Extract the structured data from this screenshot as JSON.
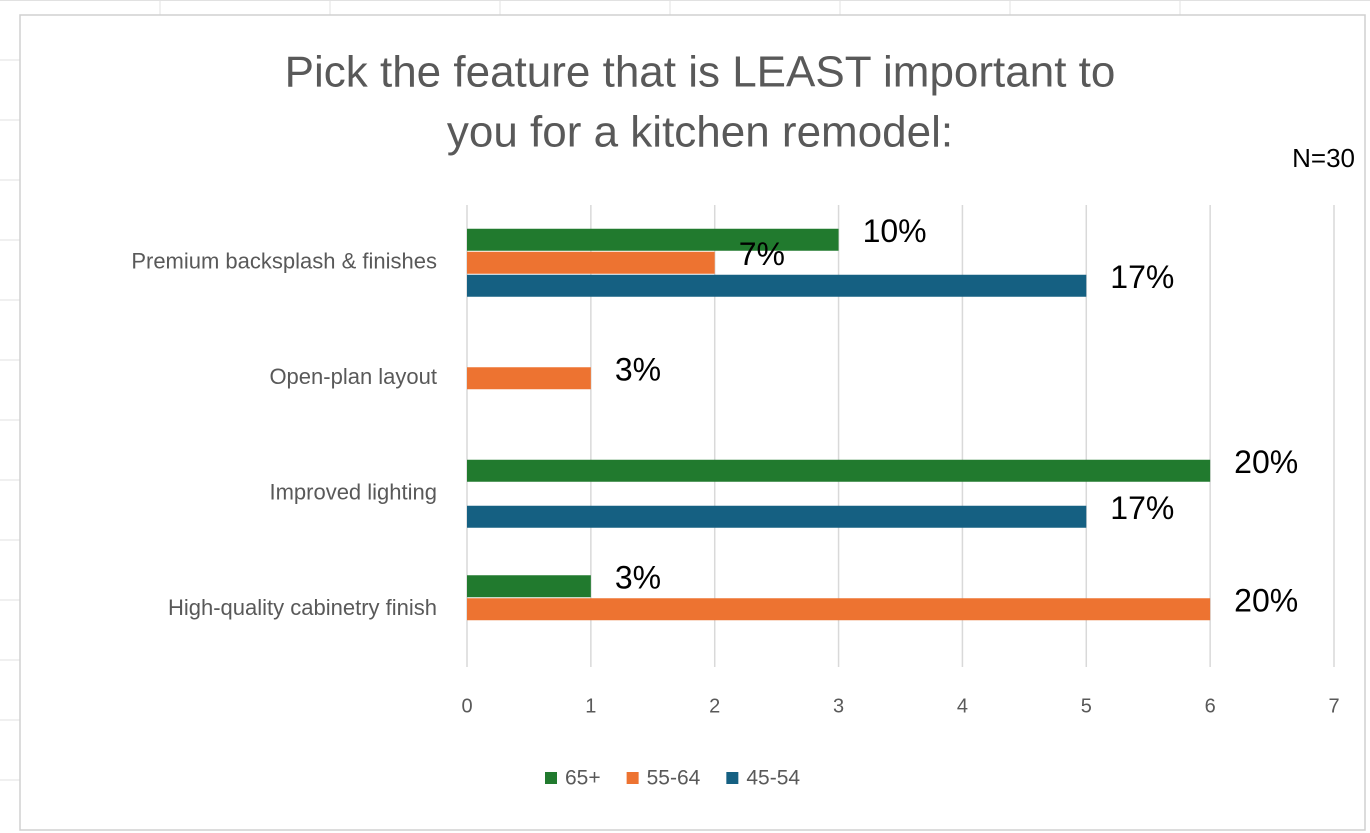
{
  "chart_data": {
    "type": "bar",
    "orientation": "horizontal",
    "title": [
      "Pick the feature that is LEAST important to",
      "you for a kitchen remodel:"
    ],
    "annotation": "N=30",
    "categories": [
      "Premium backsplash & finishes",
      "Open-plan layout",
      "Improved lighting",
      "High-quality cabinetry finish"
    ],
    "series": [
      {
        "name": "65+",
        "color": "#217a2e",
        "values": [
          3,
          null,
          6,
          1
        ],
        "value_labels": [
          "10%",
          null,
          "20%",
          "3%"
        ]
      },
      {
        "name": "55-64",
        "color": "#ed7331",
        "values": [
          2,
          1,
          null,
          6
        ],
        "value_labels": [
          "7%",
          "3%",
          null,
          "20%"
        ]
      },
      {
        "name": "45-54",
        "color": "#156082",
        "values": [
          5,
          null,
          5,
          null
        ],
        "value_labels": [
          "17%",
          null,
          "17%",
          null
        ]
      }
    ],
    "xlim": [
      0,
      7
    ],
    "xticks": [
      0,
      1,
      2,
      3,
      4,
      5,
      6,
      7
    ],
    "grid": true
  }
}
